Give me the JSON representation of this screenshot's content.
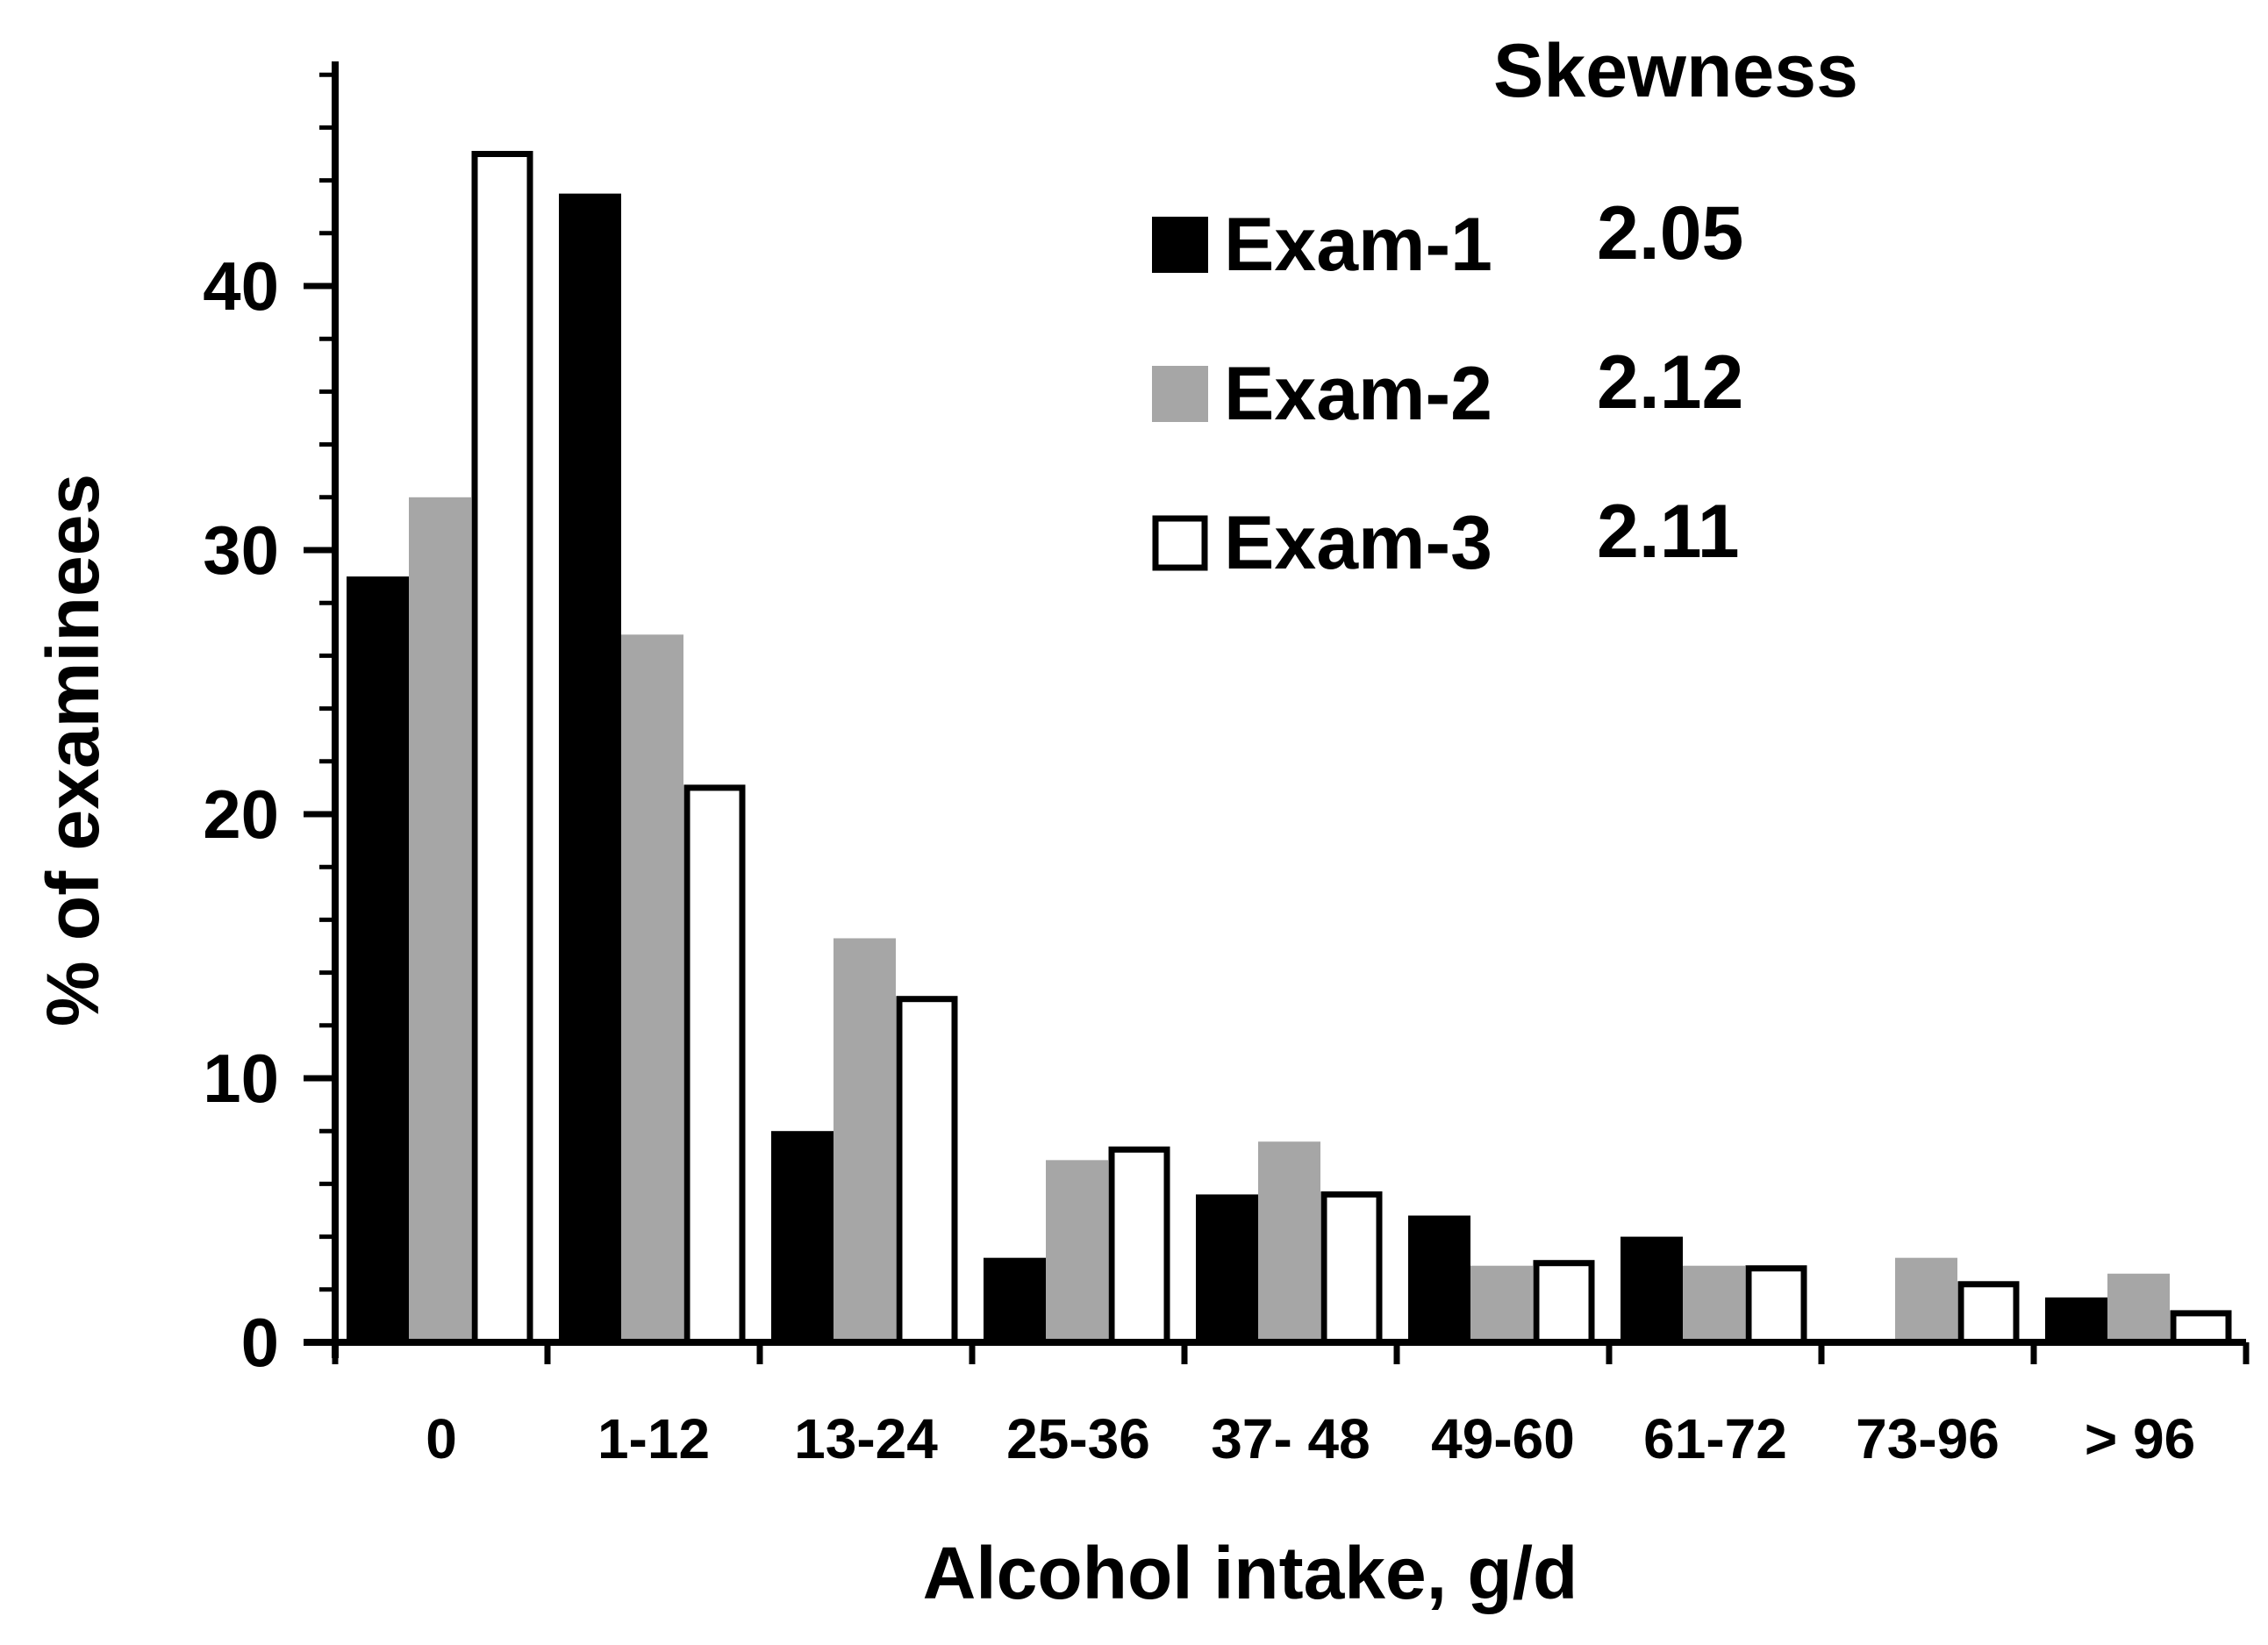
{
  "chart_data": {
    "type": "bar",
    "title": "",
    "xlabel": "Alcohol intake, g/d",
    "ylabel": "% of examinees",
    "ylim": [
      0,
      48
    ],
    "yticks": [
      0,
      10,
      20,
      30,
      40
    ],
    "grid": false,
    "categories": [
      "0",
      "1-12",
      "13-24",
      "25-36",
      "37- 48",
      "49-60",
      "61-72",
      "73-96",
      "> 96"
    ],
    "series": [
      {
        "name": "Exam-1",
        "skewness": "2.05",
        "color": "#000000",
        "values": [
          29,
          43.5,
          8,
          3.2,
          5.6,
          4.8,
          4.0,
          0,
          1.7
        ]
      },
      {
        "name": "Exam-2",
        "skewness": "2.12",
        "color": "#a6a6a6",
        "values": [
          32,
          26.8,
          15.3,
          6.9,
          7.6,
          2.9,
          2.9,
          3.2,
          2.6
        ]
      },
      {
        "name": "Exam-3",
        "skewness": "2.11",
        "color": "#ffffff",
        "values": [
          45,
          21,
          13,
          7.3,
          5.6,
          3.0,
          2.8,
          2.2,
          1.1
        ]
      }
    ],
    "legend": {
      "title": "Skewness",
      "position": "top-right"
    }
  }
}
